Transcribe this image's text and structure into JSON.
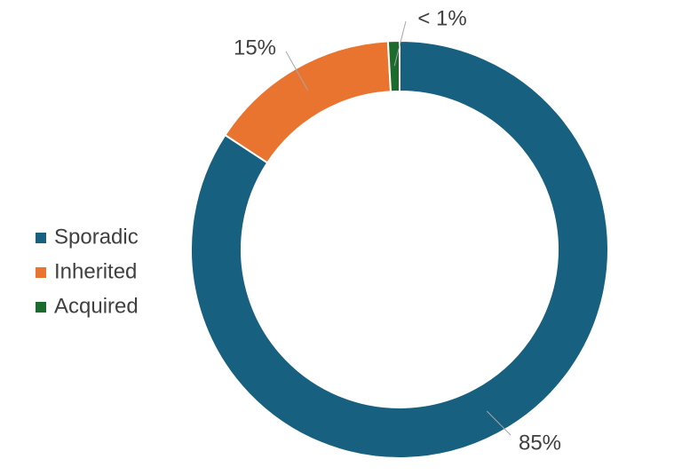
{
  "chart_data": {
    "type": "donut",
    "categories": [
      "Sporadic",
      "Inherited",
      "Acquired"
    ],
    "values": [
      85,
      15,
      0.9
    ],
    "value_labels": [
      "85%",
      "15%",
      "< 1%"
    ],
    "colors": [
      "#17607f",
      "#e97430",
      "#1b6b2c"
    ],
    "legend": "left"
  }
}
